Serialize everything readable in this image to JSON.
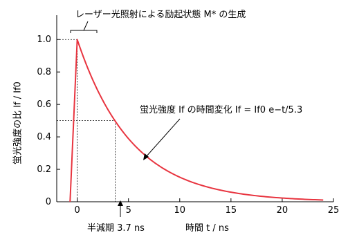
{
  "chart_data": {
    "type": "line",
    "title": "",
    "xlabel": "時間 t / ns",
    "ylabel": "蛍光強度の比 If / If0",
    "xlim": [
      -2,
      25
    ],
    "ylim": [
      0,
      1.15
    ],
    "x_ticks": [
      0,
      5,
      10,
      15,
      20,
      25
    ],
    "x_tick_labels": [
      "0",
      "5",
      "10",
      "15",
      "20",
      "25"
    ],
    "y_ticks": [
      0,
      0.2,
      0.4,
      0.6,
      0.8,
      1.0
    ],
    "y_tick_labels": [
      "0",
      "0.2",
      "0.4",
      "0.6",
      "0.8",
      "1.0"
    ],
    "series": [
      {
        "name": "",
        "color": "#e8343f",
        "rise": [
          [
            -0.7,
            0
          ],
          [
            0,
            1.0
          ]
        ],
        "decay_time_constant": 5.3,
        "decay_start": 0,
        "decay_end": 24,
        "peak": 1.0
      }
    ],
    "reference_lines": {
      "peak_level": 1.0,
      "half_level": 0.5,
      "half_life_x": 3.7
    },
    "annotations": {
      "excitation": "レーザー光照射による励起状態 M* の生成",
      "decay_formula": "蛍光強度 If の時間変化 If = If0 e−t/5.3",
      "half_life": "半減期 3.7 ns"
    },
    "grid": false,
    "legend": "none"
  }
}
